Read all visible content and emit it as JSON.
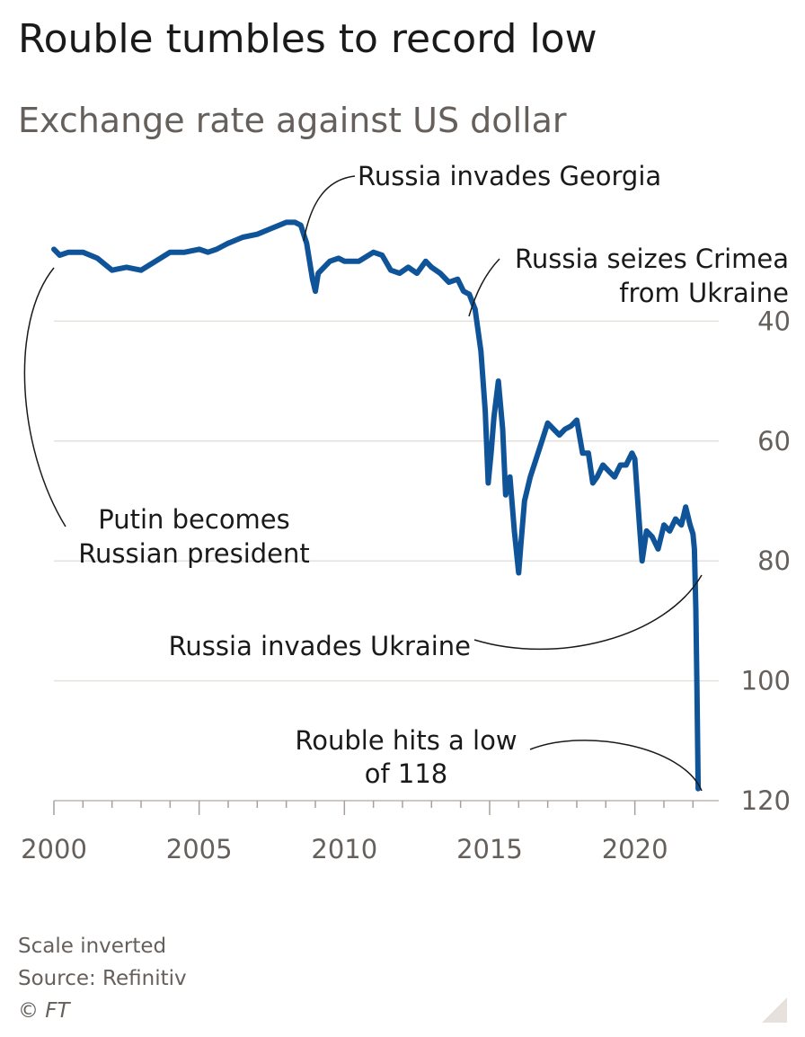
{
  "chart_data": {
    "type": "line",
    "title": "Rouble tumbles to record low",
    "subtitle": "Exchange rate against US dollar",
    "xlabel": "",
    "ylabel": "",
    "x_ticks": [
      "2000",
      "2005",
      "2010",
      "2015",
      "2020"
    ],
    "y_ticks": [
      "40",
      "60",
      "80",
      "100",
      "120"
    ],
    "xlim": [
      2000,
      2022.3
    ],
    "ylim": [
      120,
      14
    ],
    "y_inverted": true,
    "grid": true,
    "line_color": "#0f5499",
    "series": [
      {
        "x": [
          2000.0,
          2000.2,
          2000.5,
          2001.0,
          2001.5,
          2002.0,
          2002.5,
          2003.0,
          2003.5,
          2004.0,
          2004.5,
          2005.0,
          2005.3,
          2005.6,
          2006.0,
          2006.5,
          2007.0,
          2007.5,
          2008.0,
          2008.3,
          2008.5,
          2008.7,
          2008.9,
          2009.0,
          2009.1,
          2009.3,
          2009.5,
          2009.8,
          2010.0,
          2010.5,
          2011.0,
          2011.3,
          2011.6,
          2011.9,
          2012.2,
          2012.5,
          2012.8,
          2013.0,
          2013.3,
          2013.6,
          2013.9,
          2014.1,
          2014.3,
          2014.5,
          2014.7,
          2014.85,
          2014.95,
          2015.05,
          2015.15,
          2015.3,
          2015.45,
          2015.55,
          2015.7,
          2015.85,
          2016.0,
          2016.08,
          2016.2,
          2016.4,
          2016.6,
          2016.8,
          2017.0,
          2017.2,
          2017.4,
          2017.6,
          2017.8,
          2018.0,
          2018.2,
          2018.4,
          2018.55,
          2018.7,
          2018.9,
          2019.1,
          2019.3,
          2019.5,
          2019.7,
          2019.9,
          2020.0,
          2020.15,
          2020.25,
          2020.4,
          2020.6,
          2020.8,
          2021.0,
          2021.2,
          2021.4,
          2021.6,
          2021.75,
          2021.9,
          2022.0,
          2022.05,
          2022.1,
          2022.14,
          2022.18
        ],
        "y": [
          28.0,
          29.0,
          28.5,
          28.5,
          29.5,
          31.5,
          31.0,
          31.5,
          30.0,
          28.5,
          28.5,
          28.0,
          28.5,
          28.0,
          27.0,
          26.0,
          25.5,
          24.5,
          23.5,
          23.5,
          24.0,
          27.0,
          33.0,
          35.0,
          32.0,
          31.0,
          30.0,
          29.5,
          30.0,
          30.0,
          28.5,
          29.0,
          31.5,
          32.0,
          31.0,
          32.0,
          30.0,
          31.0,
          32.0,
          33.5,
          33.0,
          35.0,
          35.5,
          38.0,
          45.0,
          55.0,
          67.0,
          62.0,
          56.0,
          50.0,
          58.0,
          69.0,
          66.0,
          75.0,
          82.0,
          77.0,
          70.0,
          66.0,
          63.0,
          60.0,
          57.0,
          58.0,
          59.0,
          58.0,
          57.5,
          56.5,
          62.0,
          62.0,
          67.0,
          66.0,
          64.0,
          65.0,
          66.0,
          64.0,
          64.0,
          62.0,
          63.0,
          73.5,
          80.0,
          75.0,
          76.0,
          78.0,
          74.0,
          75.0,
          73.0,
          74.0,
          71.0,
          74.0,
          75.5,
          78.0,
          88.0,
          102.0,
          118.0
        ]
      }
    ],
    "annotations": [
      {
        "lines": [
          "Russia invades Georgia"
        ]
      },
      {
        "lines": [
          "Russia seizes Crimea",
          "from Ukraine"
        ]
      },
      {
        "lines": [
          "Putin becomes",
          "Russian president"
        ]
      },
      {
        "lines": [
          "Russia invades Ukraine"
        ]
      },
      {
        "lines": [
          "Rouble hits a low",
          "of 118"
        ]
      }
    ]
  },
  "footer": {
    "note": "Scale inverted",
    "source": "Source: Refinitiv",
    "credit": "© FT"
  }
}
